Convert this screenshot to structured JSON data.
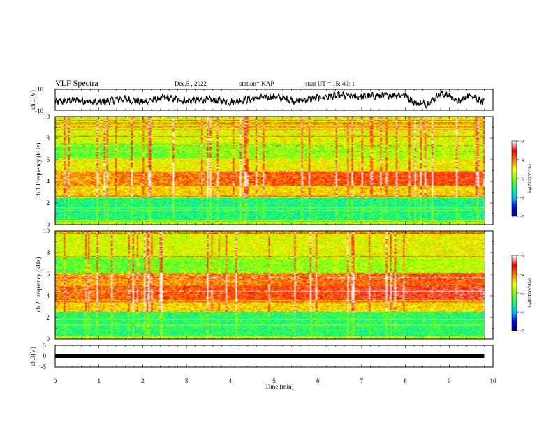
{
  "header": {
    "title": "VLF Spectra",
    "date": "Dec.5 , 2022",
    "station": "station= KAP",
    "start_time": "start UT = 15: 40: 1"
  },
  "colors": {
    "colormap": [
      "#000080",
      "#0000ff",
      "#00c0ff",
      "#00ff80",
      "#80ff00",
      "#ffff00",
      "#ff8000",
      "#ff0000",
      "#ffffff"
    ]
  },
  "chart_data": [
    {
      "type": "line",
      "ylabel": "ch.1(V)",
      "ylim": [
        -10,
        10
      ],
      "y_ticks": [
        "10",
        "-10"
      ],
      "xlim": [
        0,
        9.8
      ],
      "x": [
        0,
        0.5,
        1.0,
        1.5,
        2.0,
        2.5,
        3.0,
        3.5,
        4.0,
        4.5,
        5.0,
        5.5,
        6.0,
        6.5,
        7.0,
        7.5,
        8.0,
        8.2,
        8.5,
        8.8,
        9.0,
        9.2,
        9.5,
        9.8
      ],
      "y": [
        -2,
        0,
        -3,
        1,
        -2,
        2,
        -1,
        0,
        -2,
        1,
        3,
        -1,
        2,
        4,
        3,
        4,
        5,
        -3,
        -4,
        6,
        4,
        -2,
        5,
        -3
      ]
    },
    {
      "type": "heatmap",
      "ylabel": "ch.1 Frequency (kHz)",
      "ylim": [
        0,
        10
      ],
      "y_ticks": [
        "0",
        "2",
        "4",
        "6",
        "8",
        "10"
      ],
      "colorbar_label": "log(PSD)(V²/Hz)",
      "colorbar_range": [
        -7,
        -3
      ],
      "colorbar_ticks": [
        "-3",
        "-4",
        "-5",
        "-6",
        "-7"
      ]
    },
    {
      "type": "heatmap",
      "ylabel": "ch.2 Frequency (kHz)",
      "ylim": [
        0,
        10
      ],
      "y_ticks": [
        "0",
        "2",
        "4",
        "6",
        "8",
        "10"
      ],
      "colorbar_label": "log(PSD)(V²/Hz)",
      "colorbar_range": [
        -7,
        -3
      ],
      "colorbar_ticks": [
        "-3",
        "-4",
        "-5",
        "-6",
        "-7"
      ]
    },
    {
      "type": "line",
      "ylabel": "ch.3(V)",
      "ylim": [
        -5,
        5
      ],
      "y_ticks": [
        "5",
        "0",
        "-5"
      ],
      "x": [
        0,
        9.8
      ],
      "y": [
        0,
        0
      ]
    }
  ],
  "xaxis": {
    "label": "Time (min)",
    "range": [
      0,
      10
    ],
    "ticks": [
      "0",
      "1",
      "2",
      "3",
      "4",
      "5",
      "6",
      "7",
      "8",
      "9",
      "10"
    ]
  }
}
